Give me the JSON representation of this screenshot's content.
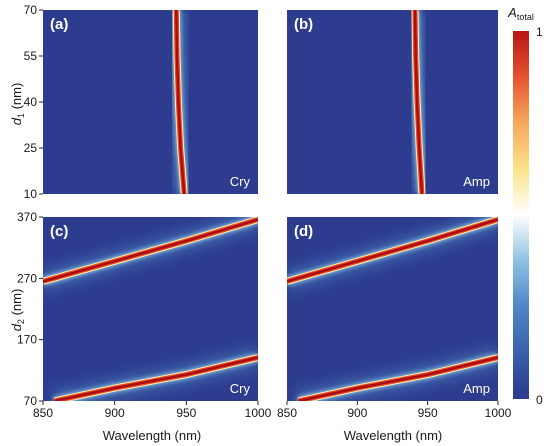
{
  "chart_data": [
    {
      "type": "heatmap",
      "panel_label": "(a)",
      "corner_label": "Cry",
      "x_range": [
        850,
        1000
      ],
      "y_range": [
        10,
        70
      ],
      "x_ticks": [],
      "y_ticks": [
        "10",
        "25",
        "40",
        "55",
        "70"
      ],
      "ylabel_main": "d",
      "ylabel_sub": "1",
      "ylabel_unit": " (nm)",
      "xlabel": "",
      "resonances": [
        {
          "points": [
            [
              948.5,
              10
            ],
            [
              946,
              25
            ],
            [
              944.5,
              40
            ],
            [
              943.5,
              55
            ],
            [
              943,
              70
            ]
          ]
        }
      ]
    },
    {
      "type": "heatmap",
      "panel_label": "(b)",
      "corner_label": "Amp",
      "x_range": [
        850,
        1000
      ],
      "y_range": [
        10,
        70
      ],
      "x_ticks": [],
      "y_ticks": [],
      "ylabel_main": "",
      "ylabel_sub": "",
      "ylabel_unit": "",
      "xlabel": "",
      "resonances": [
        {
          "points": [
            [
              946,
              10
            ],
            [
              944,
              25
            ],
            [
              942.5,
              40
            ],
            [
              941.5,
              55
            ],
            [
              941,
              70
            ]
          ]
        }
      ]
    },
    {
      "type": "heatmap",
      "panel_label": "(c)",
      "corner_label": "Cry",
      "x_range": [
        850,
        1000
      ],
      "y_range": [
        70,
        370
      ],
      "x_ticks": [
        "850",
        "900",
        "950",
        "1000"
      ],
      "y_ticks": [
        "70",
        "170",
        "270",
        "370"
      ],
      "ylabel_main": "d",
      "ylabel_sub": "2",
      "ylabel_unit": " (nm)",
      "xlabel": "Wavelength (nm)",
      "resonances": [
        {
          "points": [
            [
              850,
              265
            ],
            [
              900,
              298
            ],
            [
              950,
              331
            ],
            [
              1000,
              366
            ]
          ]
        },
        {
          "points": [
            [
              858,
              70
            ],
            [
              900,
              91
            ],
            [
              950,
              113
            ],
            [
              1000,
              141
            ]
          ]
        }
      ]
    },
    {
      "type": "heatmap",
      "panel_label": "(d)",
      "corner_label": "Amp",
      "x_range": [
        850,
        1000
      ],
      "y_range": [
        70,
        370
      ],
      "x_ticks": [
        "850",
        "900",
        "950",
        "1000"
      ],
      "y_ticks": [],
      "ylabel_main": "",
      "ylabel_sub": "",
      "ylabel_unit": "",
      "xlabel": "Wavelength (nm)",
      "resonances": [
        {
          "points": [
            [
              850,
              265
            ],
            [
              900,
              298
            ],
            [
              950,
              331
            ],
            [
              1000,
              366
            ]
          ]
        },
        {
          "points": [
            [
              858,
              70
            ],
            [
              900,
              91
            ],
            [
              950,
              113
            ],
            [
              1000,
              141
            ]
          ]
        }
      ]
    }
  ],
  "colorbar": {
    "label_main": "A",
    "label_sub": "total",
    "max_label": "1",
    "min_label": "0",
    "colors": [
      "#2b3990",
      "#3a5fab",
      "#4f86c6",
      "#8fc1e3",
      "#ffffff",
      "#fce38a",
      "#f6a85c",
      "#e5532f",
      "#b81515"
    ]
  },
  "background_color": "#2d3c8e"
}
